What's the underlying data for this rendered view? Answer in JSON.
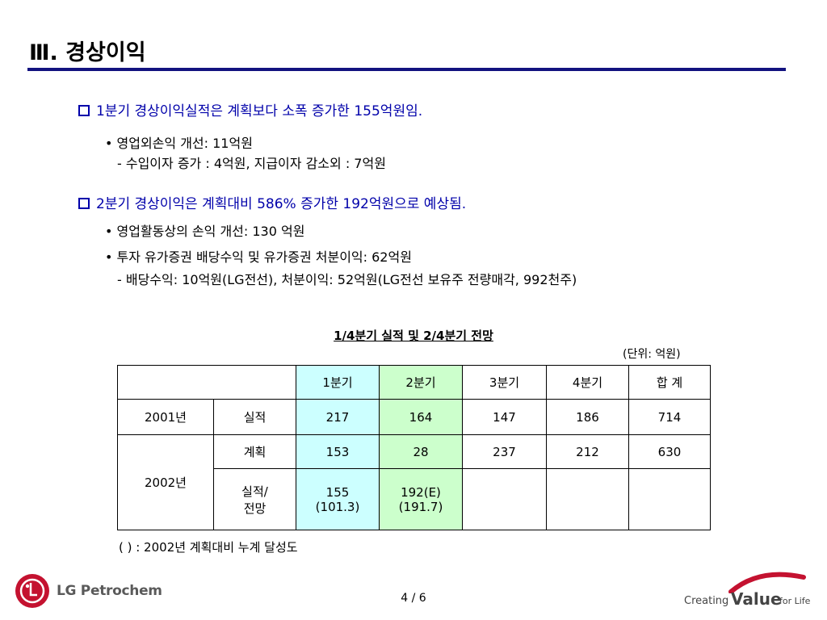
{
  "title": "Ⅲ. 경상이익",
  "sections": [
    {
      "headline": "1분기 경상이익실적은 계획보다 소폭 증가한 155억원임.",
      "lines": [
        "• 영업외손익 개선: 11억원",
        "- 수입이자 증가 : 4억원, 지급이자 감소외 : 7억원"
      ]
    },
    {
      "headline": "2분기 경상이익은 계획대비 586% 증가한 192억원으로 예상됨.",
      "lines": [
        "• 영업활동상의 손익 개선: 130 억원",
        "• 투자 유가증권 배당수익 및 유가증권 처분이익: 62억원",
        "- 배당수익: 10억원(LG전선), 처분이익: 52억원(LG전선 보유주 전량매각, 992천주)"
      ]
    }
  ],
  "table": {
    "caption": "1/4분기 실적 및 2/4분기 전망",
    "unit": "(단위: 억원)",
    "headers": [
      "1분기",
      "2분기",
      "3분기",
      "4분기",
      "합 계"
    ],
    "row2001": {
      "year": "2001년",
      "label": "실적",
      "values": [
        "217",
        "164",
        "147",
        "186",
        "714"
      ]
    },
    "year2002": "2002년",
    "row2002plan": {
      "label": "계획",
      "values": [
        "153",
        "28",
        "237",
        "212",
        "630"
      ]
    },
    "row2002actual": {
      "label1": "실적/",
      "label2": "전망",
      "q1a": "155",
      "q1b": "(101.3)",
      "q2a": "192(E)",
      "q2b": "(191.7)"
    },
    "note": "( ) : 2002년 계획대비 누계 달성도"
  },
  "footer": {
    "company": "LG Petrochem",
    "page": "4 / 6",
    "slogan_creating": "Creating",
    "slogan_value": "Value",
    "slogan_forlife": "for Life",
    "accent_color": "#12127f",
    "logo_color": "#c41230"
  }
}
